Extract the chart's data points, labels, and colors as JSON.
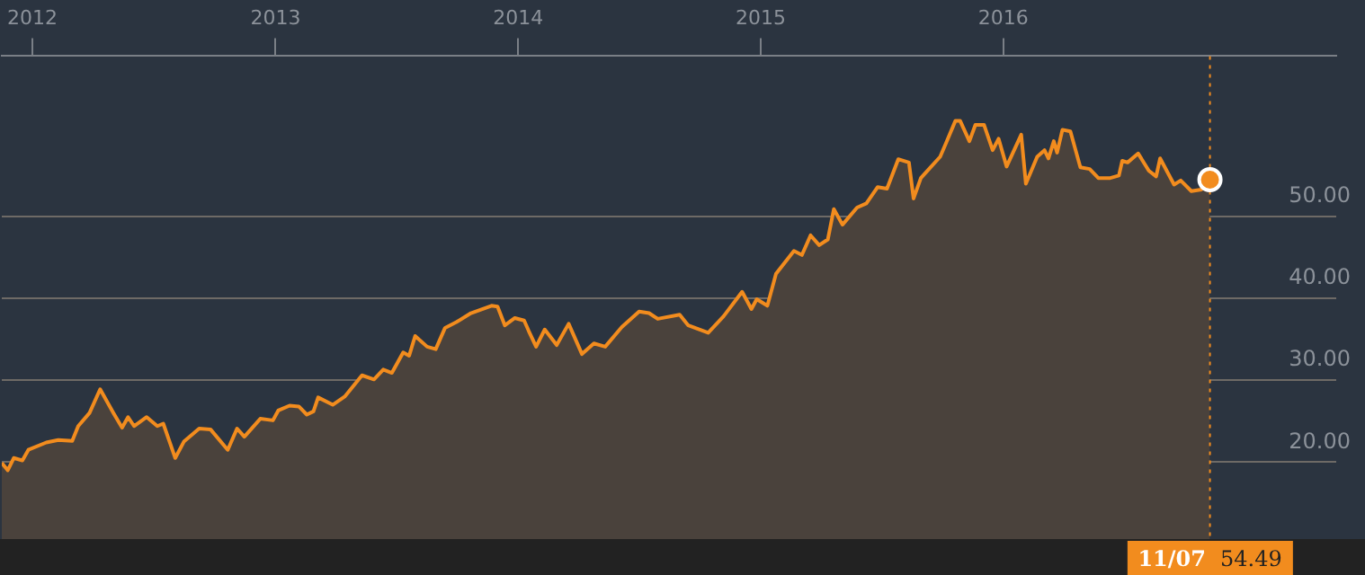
{
  "chart_data": {
    "type": "area",
    "x": [
      "2011-11-16",
      "2011-11-25",
      "2011-12-04",
      "2011-12-17",
      "2011-12-26",
      "2012-01-22",
      "2012-02-09",
      "2012-03-01",
      "2012-03-10",
      "2012-03-27",
      "2012-04-12",
      "2012-05-02",
      "2012-05-15",
      "2012-05-24",
      "2012-06-02",
      "2012-06-21",
      "2012-07-07",
      "2012-07-16",
      "2012-08-03",
      "2012-08-16",
      "2012-09-08",
      "2012-09-25",
      "2012-10-21",
      "2012-11-04",
      "2012-11-15",
      "2012-12-09",
      "2012-12-28",
      "2013-01-05",
      "2013-01-22",
      "2013-02-05",
      "2013-02-17",
      "2013-02-27",
      "2013-03-06",
      "2013-03-28",
      "2013-04-15",
      "2013-05-11",
      "2013-05-29",
      "2013-06-12",
      "2013-06-25",
      "2013-07-12",
      "2013-07-21",
      "2013-07-30",
      "2013-08-17",
      "2013-08-30",
      "2013-09-13",
      "2013-09-30",
      "2013-10-22",
      "2013-11-22",
      "2013-12-01",
      "2013-12-12",
      "2013-12-27",
      "2014-01-10",
      "2014-01-17",
      "2014-01-28",
      "2014-02-10",
      "2014-02-28",
      "2014-03-18",
      "2014-04-07",
      "2014-04-25",
      "2014-05-12",
      "2014-06-06",
      "2014-07-02",
      "2014-07-17",
      "2014-07-30",
      "2014-09-01",
      "2014-09-14",
      "2014-10-14",
      "2014-11-06",
      "2014-12-04",
      "2014-12-18",
      "2014-12-26",
      "2015-01-11",
      "2015-01-24",
      "2015-02-20",
      "2015-03-04",
      "2015-03-17",
      "2015-03-30",
      "2015-04-12",
      "2015-04-21",
      "2015-05-04",
      "2015-05-26",
      "2015-06-09",
      "2015-06-26",
      "2015-07-10",
      "2015-07-27",
      "2015-08-12",
      "2015-08-19",
      "2015-08-30",
      "2015-09-10",
      "2015-09-28",
      "2015-10-07",
      "2015-10-21",
      "2015-10-28",
      "2015-11-11",
      "2015-11-20",
      "2015-12-03",
      "2015-12-16",
      "2015-12-25",
      "2016-01-06",
      "2016-01-28",
      "2016-02-04",
      "2016-02-21",
      "2016-03-03",
      "2016-03-09",
      "2016-03-17",
      "2016-03-22",
      "2016-03-30",
      "2016-04-11",
      "2016-04-26",
      "2016-05-10",
      "2016-05-23",
      "2016-06-10",
      "2016-06-23",
      "2016-06-28",
      "2016-07-06",
      "2016-07-22",
      "2016-08-07",
      "2016-08-18",
      "2016-08-24",
      "2016-09-14",
      "2016-09-24",
      "2016-10-10",
      "2016-10-25",
      "2016-11-07"
    ],
    "series": [
      {
        "color": "#f28c1e",
        "values": [
          19.9,
          19.0,
          20.5,
          20.2,
          21.5,
          22.4,
          22.7,
          22.6,
          24.4,
          26.0,
          28.9,
          26.0,
          24.2,
          25.5,
          24.4,
          25.5,
          24.4,
          24.7,
          20.5,
          22.5,
          24.1,
          24.0,
          21.5,
          24.1,
          23.1,
          25.3,
          25.1,
          26.3,
          26.9,
          26.8,
          25.8,
          26.2,
          27.9,
          27.0,
          28.0,
          30.6,
          30.1,
          31.3,
          30.9,
          33.4,
          33.0,
          35.4,
          34.1,
          33.8,
          36.4,
          37.1,
          38.2,
          39.1,
          39.0,
          36.7,
          37.6,
          37.3,
          36.0,
          34.1,
          36.2,
          34.3,
          36.9,
          33.2,
          34.5,
          34.1,
          36.5,
          38.4,
          38.2,
          37.5,
          38.0,
          36.7,
          35.8,
          37.8,
          40.8,
          38.7,
          39.9,
          39.1,
          43.0,
          45.8,
          45.3,
          47.7,
          46.5,
          47.2,
          50.9,
          49.0,
          51.1,
          51.6,
          53.6,
          53.4,
          57.0,
          56.6,
          52.2,
          54.7,
          55.7,
          57.3,
          59.0,
          61.7,
          61.7,
          59.2,
          61.2,
          61.2,
          58.1,
          59.5,
          56.1,
          60.0,
          54.0,
          57.3,
          58.1,
          57.1,
          59.2,
          57.8,
          60.6,
          60.4,
          56.0,
          55.8,
          54.7,
          54.7,
          55.0,
          56.8,
          56.6,
          57.7,
          55.6,
          54.9,
          57.1,
          53.9,
          54.4,
          53.1,
          53.3,
          54.5
        ]
      }
    ],
    "xlim": [
      "2011-11-16",
      "2017-05-16"
    ],
    "xticks": [
      {
        "value": "2012-01-01",
        "label": "2012"
      },
      {
        "value": "2013-01-01",
        "label": "2013"
      },
      {
        "value": "2014-01-01",
        "label": "2014"
      },
      {
        "value": "2015-01-01",
        "label": "2015"
      },
      {
        "value": "2016-01-01",
        "label": "2016"
      }
    ],
    "ylim": [
      10.6,
      69.6
    ],
    "yticks": [
      {
        "value": 20,
        "label": "20.00"
      },
      {
        "value": 30,
        "label": "30.00"
      },
      {
        "value": 40,
        "label": "40.00"
      },
      {
        "value": 50,
        "label": "50.00"
      }
    ],
    "grid": "y",
    "marker": "none",
    "line_style": "solid",
    "legend": false,
    "ref_lines": [
      {
        "axis": "x",
        "value": "2016-11-07",
        "label": "11/07",
        "color": "#f28c1e",
        "line_style": "dotted"
      }
    ],
    "annotations": [
      "54.49"
    ]
  }
}
